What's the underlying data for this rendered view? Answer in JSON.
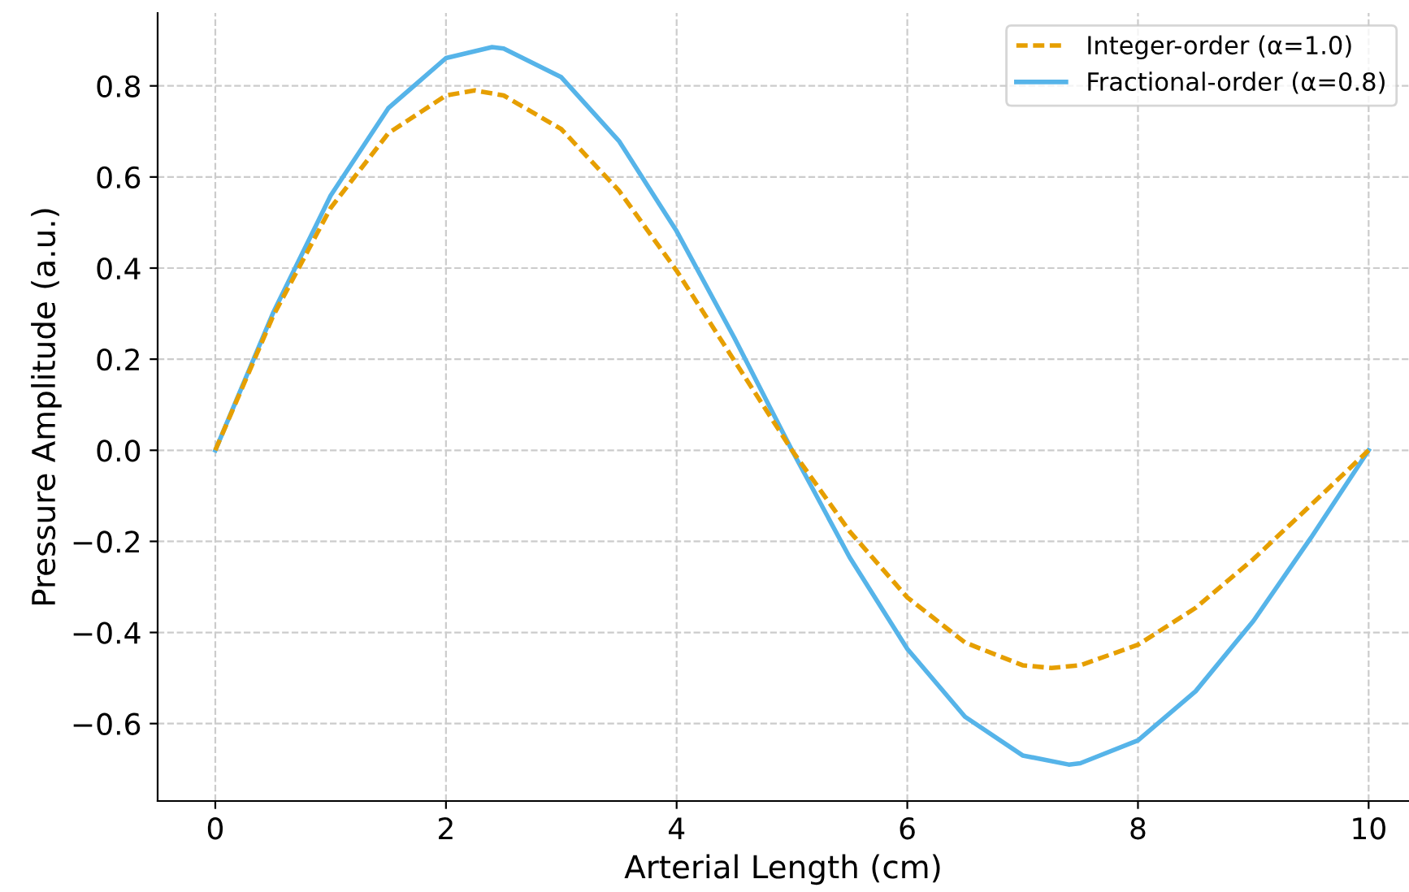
{
  "chart_data": {
    "type": "line",
    "xlabel": "Arterial Length (cm)",
    "ylabel": "Pressure Amplitude (a.u.)",
    "xlim": [
      -0.5,
      10.35
    ],
    "ylim": [
      -0.77,
      0.96
    ],
    "xticks": [
      0,
      2,
      4,
      6,
      8,
      10
    ],
    "yticks": [
      {
        "value": -0.6,
        "label": "−0.6"
      },
      {
        "value": -0.4,
        "label": "−0.4"
      },
      {
        "value": -0.2,
        "label": "−0.2"
      },
      {
        "value": 0,
        "label": "0.0"
      },
      {
        "value": 0.2,
        "label": "0.2"
      },
      {
        "value": 0.4,
        "label": "0.4"
      },
      {
        "value": 0.6,
        "label": "0.6"
      },
      {
        "value": 0.8,
        "label": "0.8"
      }
    ],
    "grid": true,
    "legend": "top right",
    "series": [
      {
        "name": "Integer-order (α=1.0)",
        "color": "#e69f00",
        "line_style": "dashed",
        "x": [
          0,
          0.5,
          1,
          1.5,
          2,
          2.25,
          2.5,
          3,
          3.5,
          4,
          4.5,
          5,
          5.5,
          6,
          6.5,
          7,
          7.25,
          7.5,
          8,
          8.5,
          9,
          9.5,
          10
        ],
        "values": [
          0,
          0.294,
          0.532,
          0.696,
          0.779,
          0.79,
          0.779,
          0.705,
          0.57,
          0.394,
          0.197,
          0,
          -0.178,
          -0.323,
          -0.422,
          -0.472,
          -0.478,
          -0.472,
          -0.427,
          -0.346,
          -0.239,
          -0.12,
          0
        ]
      },
      {
        "name": "Fractional-order (α=0.8)",
        "color": "#56b4e9",
        "line_style": "solid",
        "x": [
          0,
          0.5,
          1,
          1.5,
          2,
          2.4,
          2.5,
          3,
          3.5,
          4,
          4.5,
          5,
          5.5,
          6,
          6.5,
          7,
          7.4,
          7.5,
          8,
          8.5,
          9,
          9.5,
          10
        ],
        "values": [
          0,
          0.301,
          0.559,
          0.751,
          0.861,
          0.885,
          0.882,
          0.819,
          0.679,
          0.481,
          0.247,
          0,
          -0.235,
          -0.436,
          -0.585,
          -0.67,
          -0.69,
          -0.687,
          -0.637,
          -0.529,
          -0.375,
          -0.192,
          0
        ]
      }
    ]
  }
}
